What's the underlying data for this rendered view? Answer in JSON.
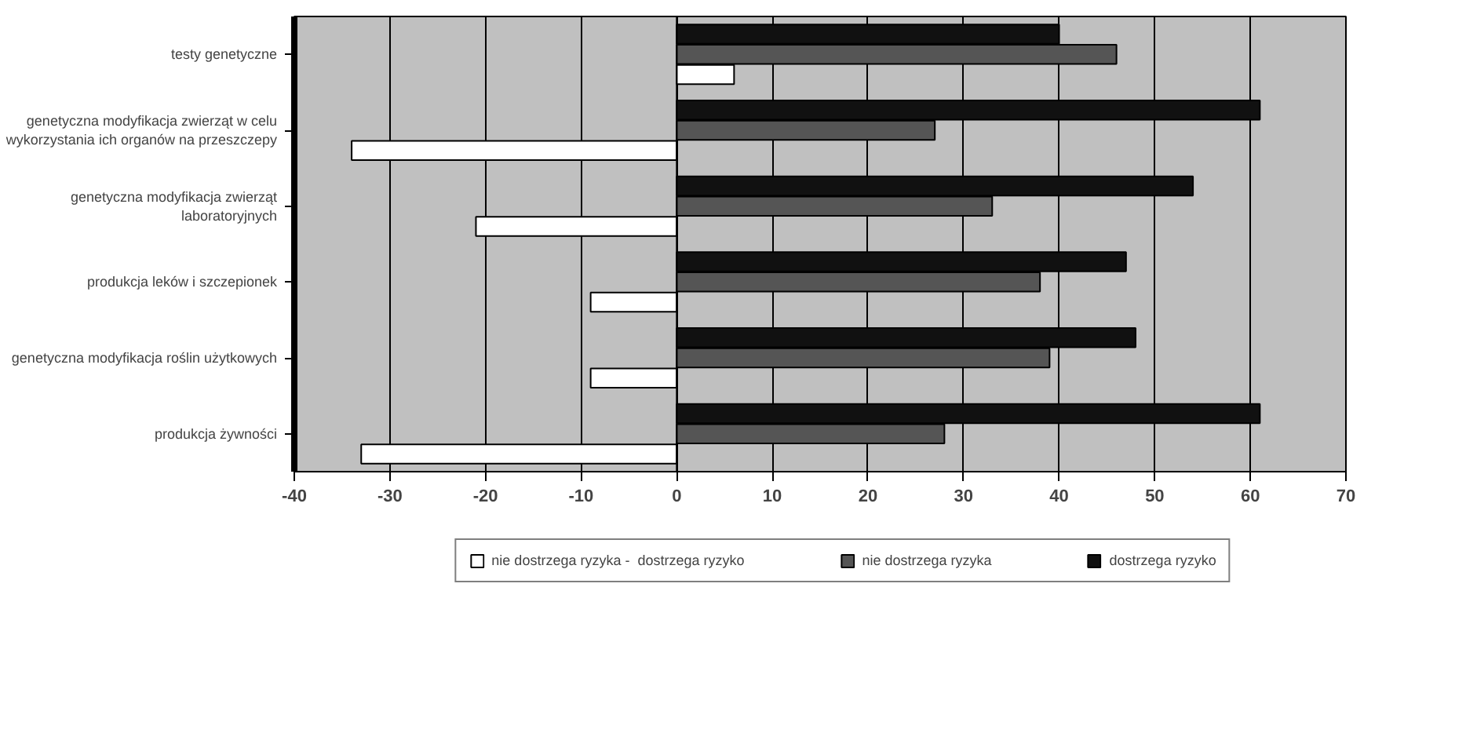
{
  "chart_data": {
    "type": "bar",
    "orientation": "horizontal",
    "categories": [
      "testy genetyczne",
      "genetyczna modyfikacja zwierząt w celu wykorzystania ich organów na przeszczepy",
      "genetyczna modyfikacja zwierząt laboratoryjnych",
      "produkcja leków i szczepionek",
      "genetyczna modyfikacja roślin użytkowych",
      "produkcja żywności"
    ],
    "series": [
      {
        "name": "nie dostrzega ryzyka -  dostrzega ryzyko",
        "color": "#ffffff",
        "values": [
          6,
          -34,
          -21,
          -9,
          -9,
          -33
        ]
      },
      {
        "name": "nie dostrzega ryzyka",
        "color": "#555555",
        "values": [
          46,
          27,
          33,
          38,
          39,
          28
        ]
      },
      {
        "name": "dostrzega ryzyko",
        "color": "#111111",
        "values": [
          40,
          61,
          54,
          47,
          48,
          61
        ]
      }
    ],
    "xlim": [
      -40,
      70
    ],
    "xticks": [
      -40,
      -30,
      -20,
      -10,
      0,
      10,
      20,
      30,
      40,
      50,
      60,
      70
    ],
    "grid": "x",
    "legend": "bottom"
  }
}
